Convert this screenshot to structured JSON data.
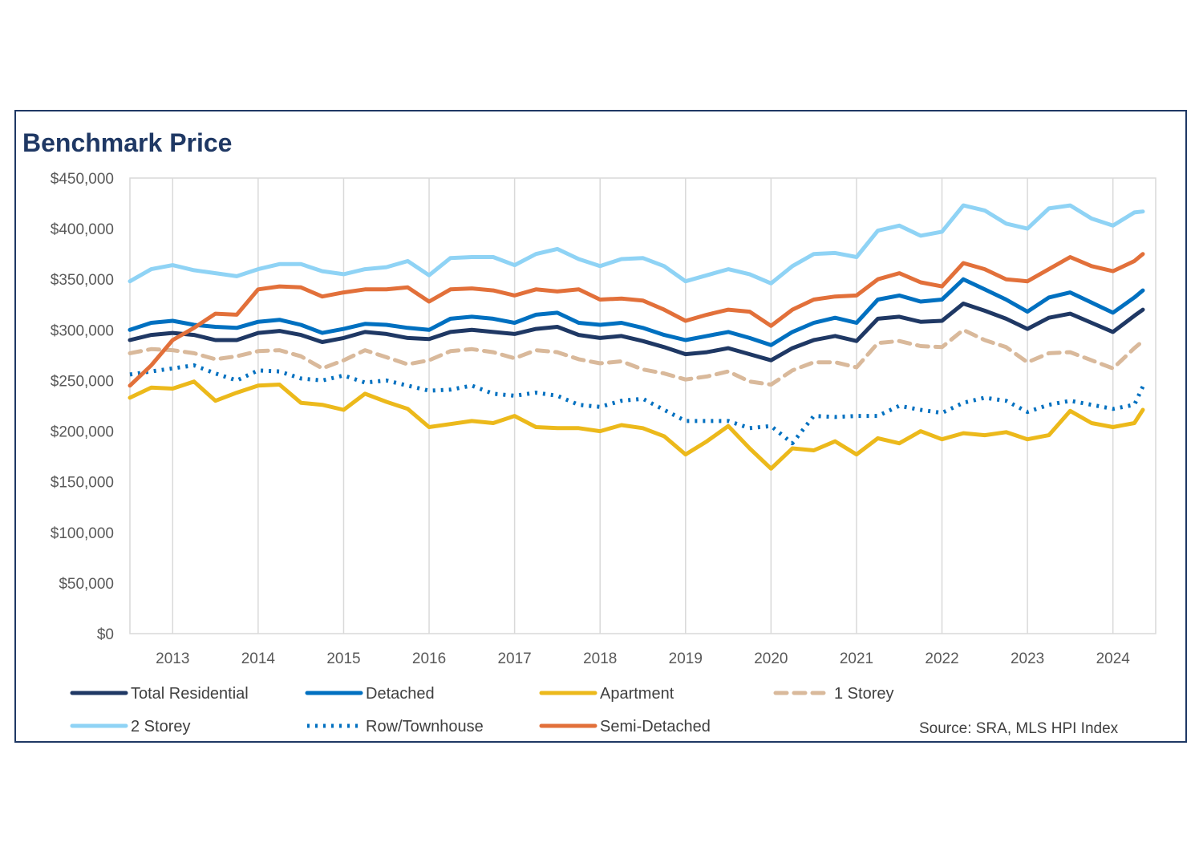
{
  "chart_data": {
    "type": "line",
    "title": "Benchmark Price",
    "xlabel": "",
    "ylabel": "",
    "ylim": [
      0,
      450000
    ],
    "ytick_values": [
      0,
      50000,
      100000,
      150000,
      200000,
      250000,
      300000,
      350000,
      400000,
      450000
    ],
    "ytick_labels": [
      "$0",
      "$50,000",
      "$100,000",
      "$150,000",
      "$200,000",
      "$250,000",
      "$300,000",
      "$350,000",
      "$400,000",
      "$450,000"
    ],
    "x_range": [
      2012.5,
      2024.5
    ],
    "xtick_labels": [
      "2013",
      "2014",
      "2015",
      "2016",
      "2017",
      "2018",
      "2019",
      "2020",
      "2021",
      "2022",
      "2023",
      "2024"
    ],
    "grid": "vertical",
    "legend_position": "bottom",
    "source": "Source: SRA, MLS HPI Index",
    "series": [
      {
        "name": "Total Residential",
        "color": "#1f3864",
        "dash": "solid",
        "x": [
          2012.5,
          2012.75,
          2013.0,
          2013.25,
          2013.5,
          2013.75,
          2014.0,
          2014.25,
          2014.5,
          2014.75,
          2015.0,
          2015.25,
          2015.5,
          2015.75,
          2016.0,
          2016.25,
          2016.5,
          2016.75,
          2017.0,
          2017.25,
          2017.5,
          2017.75,
          2018.0,
          2018.25,
          2018.5,
          2018.75,
          2019.0,
          2019.25,
          2019.5,
          2019.75,
          2020.0,
          2020.25,
          2020.5,
          2020.75,
          2021.0,
          2021.25,
          2021.5,
          2021.75,
          2022.0,
          2022.25,
          2022.5,
          2022.75,
          2023.0,
          2023.25,
          2023.5,
          2023.75,
          2024.0,
          2024.25,
          2024.35
        ],
        "y": [
          290000,
          295000,
          297000,
          295000,
          290000,
          290000,
          297000,
          299000,
          295000,
          288000,
          292000,
          298000,
          296000,
          292000,
          291000,
          298000,
          300000,
          298000,
          296000,
          301000,
          303000,
          295000,
          292000,
          294000,
          289000,
          283000,
          276000,
          278000,
          282000,
          276000,
          270000,
          282000,
          290000,
          294000,
          289000,
          311000,
          313000,
          308000,
          309000,
          326000,
          319000,
          311000,
          301000,
          312000,
          316000,
          307000,
          298000,
          314000,
          320000
        ]
      },
      {
        "name": "Detached",
        "color": "#0070c0",
        "dash": "solid",
        "x": [
          2012.5,
          2012.75,
          2013.0,
          2013.25,
          2013.5,
          2013.75,
          2014.0,
          2014.25,
          2014.5,
          2014.75,
          2015.0,
          2015.25,
          2015.5,
          2015.75,
          2016.0,
          2016.25,
          2016.5,
          2016.75,
          2017.0,
          2017.25,
          2017.5,
          2017.75,
          2018.0,
          2018.25,
          2018.5,
          2018.75,
          2019.0,
          2019.25,
          2019.5,
          2019.75,
          2020.0,
          2020.25,
          2020.5,
          2020.75,
          2021.0,
          2021.25,
          2021.5,
          2021.75,
          2022.0,
          2022.25,
          2022.5,
          2022.75,
          2023.0,
          2023.25,
          2023.5,
          2023.75,
          2024.0,
          2024.25,
          2024.35
        ],
        "y": [
          300000,
          307000,
          309000,
          305000,
          303000,
          302000,
          308000,
          310000,
          305000,
          297000,
          301000,
          306000,
          305000,
          302000,
          300000,
          311000,
          313000,
          311000,
          307000,
          315000,
          317000,
          307000,
          305000,
          307000,
          302000,
          295000,
          290000,
          294000,
          298000,
          292000,
          285000,
          298000,
          307000,
          312000,
          307000,
          330000,
          334000,
          328000,
          330000,
          350000,
          340000,
          330000,
          318000,
          332000,
          337000,
          327000,
          317000,
          332000,
          339000
        ]
      },
      {
        "name": "Apartment",
        "color": "#ecb91b",
        "dash": "solid",
        "x": [
          2012.5,
          2012.75,
          2013.0,
          2013.25,
          2013.5,
          2013.75,
          2014.0,
          2014.25,
          2014.5,
          2014.75,
          2015.0,
          2015.25,
          2015.5,
          2015.75,
          2016.0,
          2016.25,
          2016.5,
          2016.75,
          2017.0,
          2017.25,
          2017.5,
          2017.75,
          2018.0,
          2018.25,
          2018.5,
          2018.75,
          2019.0,
          2019.25,
          2019.5,
          2019.75,
          2020.0,
          2020.25,
          2020.5,
          2020.75,
          2021.0,
          2021.25,
          2021.5,
          2021.75,
          2022.0,
          2022.25,
          2022.5,
          2022.75,
          2023.0,
          2023.25,
          2023.5,
          2023.75,
          2024.0,
          2024.25,
          2024.35
        ],
        "y": [
          233000,
          243000,
          242000,
          249000,
          230000,
          238000,
          245000,
          246000,
          228000,
          226000,
          221000,
          237000,
          229000,
          222000,
          204000,
          207000,
          210000,
          208000,
          215000,
          204000,
          203000,
          203000,
          200000,
          206000,
          203000,
          195000,
          177000,
          190000,
          205000,
          183000,
          163000,
          183000,
          181000,
          190000,
          177000,
          193000,
          188000,
          200000,
          192000,
          198000,
          196000,
          199000,
          192000,
          196000,
          220000,
          208000,
          204000,
          208000,
          221000
        ]
      },
      {
        "name": "1 Storey",
        "color": "#d9b99b",
        "dash": "dash",
        "x": [
          2012.5,
          2012.75,
          2013.0,
          2013.25,
          2013.5,
          2013.75,
          2014.0,
          2014.25,
          2014.5,
          2014.75,
          2015.0,
          2015.25,
          2015.5,
          2015.75,
          2016.0,
          2016.25,
          2016.5,
          2016.75,
          2017.0,
          2017.25,
          2017.5,
          2017.75,
          2018.0,
          2018.25,
          2018.5,
          2018.75,
          2019.0,
          2019.25,
          2019.5,
          2019.75,
          2020.0,
          2020.25,
          2020.5,
          2020.75,
          2021.0,
          2021.25,
          2021.5,
          2021.75,
          2022.0,
          2022.25,
          2022.5,
          2022.75,
          2023.0,
          2023.25,
          2023.5,
          2023.75,
          2024.0,
          2024.25,
          2024.35
        ],
        "y": [
          277000,
          281000,
          280000,
          277000,
          271000,
          274000,
          279000,
          280000,
          274000,
          262000,
          270000,
          280000,
          273000,
          266000,
          270000,
          279000,
          281000,
          278000,
          272000,
          280000,
          278000,
          271000,
          267000,
          269000,
          261000,
          257000,
          251000,
          254000,
          259000,
          249000,
          246000,
          260000,
          268000,
          268000,
          263000,
          287000,
          289000,
          284000,
          283000,
          300000,
          290000,
          283000,
          268000,
          277000,
          278000,
          270000,
          262000,
          282000,
          289000
        ]
      },
      {
        "name": "2 Storey",
        "color": "#8fd3f5",
        "dash": "solid",
        "x": [
          2012.5,
          2012.75,
          2013.0,
          2013.25,
          2013.5,
          2013.75,
          2014.0,
          2014.25,
          2014.5,
          2014.75,
          2015.0,
          2015.25,
          2015.5,
          2015.75,
          2016.0,
          2016.25,
          2016.5,
          2016.75,
          2017.0,
          2017.25,
          2017.5,
          2017.75,
          2018.0,
          2018.25,
          2018.5,
          2018.75,
          2019.0,
          2019.25,
          2019.5,
          2019.75,
          2020.0,
          2020.25,
          2020.5,
          2020.75,
          2021.0,
          2021.25,
          2021.5,
          2021.75,
          2022.0,
          2022.25,
          2022.5,
          2022.75,
          2023.0,
          2023.25,
          2023.5,
          2023.75,
          2024.0,
          2024.25,
          2024.35
        ],
        "y": [
          348000,
          360000,
          364000,
          359000,
          356000,
          353000,
          360000,
          365000,
          365000,
          358000,
          355000,
          360000,
          362000,
          368000,
          354000,
          371000,
          372000,
          372000,
          364000,
          375000,
          380000,
          370000,
          363000,
          370000,
          371000,
          363000,
          348000,
          354000,
          360000,
          355000,
          346000,
          363000,
          375000,
          376000,
          372000,
          398000,
          403000,
          393000,
          397000,
          423000,
          418000,
          405000,
          400000,
          420000,
          423000,
          410000,
          403000,
          416000,
          417000
        ]
      },
      {
        "name": "Row/Townhouse",
        "color": "#0070c0",
        "dash": "dot",
        "x": [
          2012.5,
          2012.75,
          2013.0,
          2013.25,
          2013.5,
          2013.75,
          2014.0,
          2014.25,
          2014.5,
          2014.75,
          2015.0,
          2015.25,
          2015.5,
          2015.75,
          2016.0,
          2016.25,
          2016.5,
          2016.75,
          2017.0,
          2017.25,
          2017.5,
          2017.75,
          2018.0,
          2018.25,
          2018.5,
          2018.75,
          2019.0,
          2019.25,
          2019.5,
          2019.75,
          2020.0,
          2020.25,
          2020.5,
          2020.75,
          2021.0,
          2021.25,
          2021.5,
          2021.75,
          2022.0,
          2022.25,
          2022.5,
          2022.75,
          2023.0,
          2023.25,
          2023.5,
          2023.75,
          2024.0,
          2024.25,
          2024.35
        ],
        "y": [
          256000,
          259000,
          262000,
          265000,
          257000,
          250000,
          260000,
          259000,
          252000,
          250000,
          255000,
          248000,
          250000,
          245000,
          240000,
          241000,
          245000,
          237000,
          235000,
          238000,
          235000,
          226000,
          224000,
          230000,
          232000,
          221000,
          210000,
          210000,
          210000,
          203000,
          205000,
          188000,
          215000,
          214000,
          215000,
          215000,
          225000,
          221000,
          218000,
          228000,
          233000,
          230000,
          219000,
          226000,
          230000,
          226000,
          222000,
          226000,
          244000
        ]
      },
      {
        "name": "Semi-Detached",
        "color": "#e2703a",
        "dash": "solid",
        "x": [
          2012.5,
          2012.75,
          2013.0,
          2013.25,
          2013.5,
          2013.75,
          2014.0,
          2014.25,
          2014.5,
          2014.75,
          2015.0,
          2015.25,
          2015.5,
          2015.75,
          2016.0,
          2016.25,
          2016.5,
          2016.75,
          2017.0,
          2017.25,
          2017.5,
          2017.75,
          2018.0,
          2018.25,
          2018.5,
          2018.75,
          2019.0,
          2019.25,
          2019.5,
          2019.75,
          2020.0,
          2020.25,
          2020.5,
          2020.75,
          2021.0,
          2021.25,
          2021.5,
          2021.75,
          2022.0,
          2022.25,
          2022.5,
          2022.75,
          2023.0,
          2023.25,
          2023.5,
          2023.75,
          2024.0,
          2024.25,
          2024.35
        ],
        "y": [
          245000,
          265000,
          290000,
          302000,
          316000,
          315000,
          340000,
          343000,
          342000,
          333000,
          337000,
          340000,
          340000,
          342000,
          328000,
          340000,
          341000,
          339000,
          334000,
          340000,
          338000,
          340000,
          330000,
          331000,
          329000,
          320000,
          309000,
          315000,
          320000,
          318000,
          304000,
          320000,
          330000,
          333000,
          334000,
          350000,
          356000,
          347000,
          343000,
          366000,
          360000,
          350000,
          348000,
          360000,
          372000,
          363000,
          358000,
          368000,
          375000
        ]
      }
    ]
  }
}
